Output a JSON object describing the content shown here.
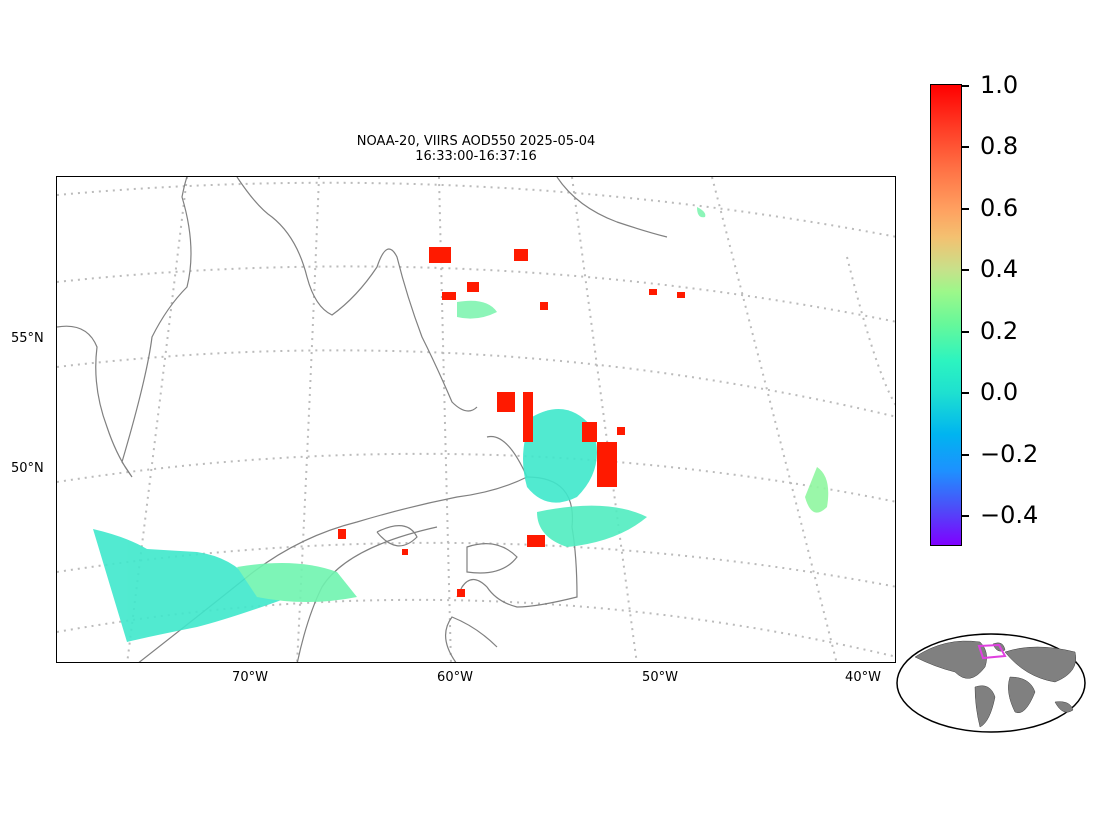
{
  "title": {
    "line1": "NOAA-20, VIIRS AOD550 2025-05-04",
    "line2": "16:33:00-16:37:16"
  },
  "map": {
    "lat_labels": [
      "55°N",
      "50°N"
    ],
    "lon_labels": [
      "70°W",
      "60°W",
      "50°W",
      "40°W"
    ],
    "coastline_color": "#808080",
    "gridline_color": "#bbbbbb"
  },
  "colorbar": {
    "min": -0.5,
    "max": 1.0,
    "ticks": [
      "1.0",
      "0.8",
      "0.6",
      "0.4",
      "0.2",
      "0.0",
      "−0.2",
      "−0.4"
    ],
    "colormap": "rainbow",
    "low_color": "#7f00ff",
    "high_color": "#ff0000"
  },
  "inset": {
    "land_color": "#808080",
    "region_box_color": "#e040e0"
  }
}
